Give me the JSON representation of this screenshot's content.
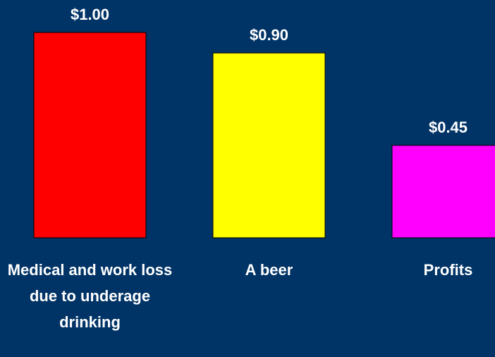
{
  "chart_data": {
    "type": "bar",
    "categories": [
      "Medical and work loss due to underage drinking",
      "A beer",
      "Profits"
    ],
    "values": [
      1.0,
      0.9,
      0.45
    ],
    "value_labels": [
      "$1.00",
      "$0.90",
      "$0.45"
    ],
    "colors": [
      "#ff0000",
      "#ffff00",
      "#ff00ff"
    ]
  }
}
